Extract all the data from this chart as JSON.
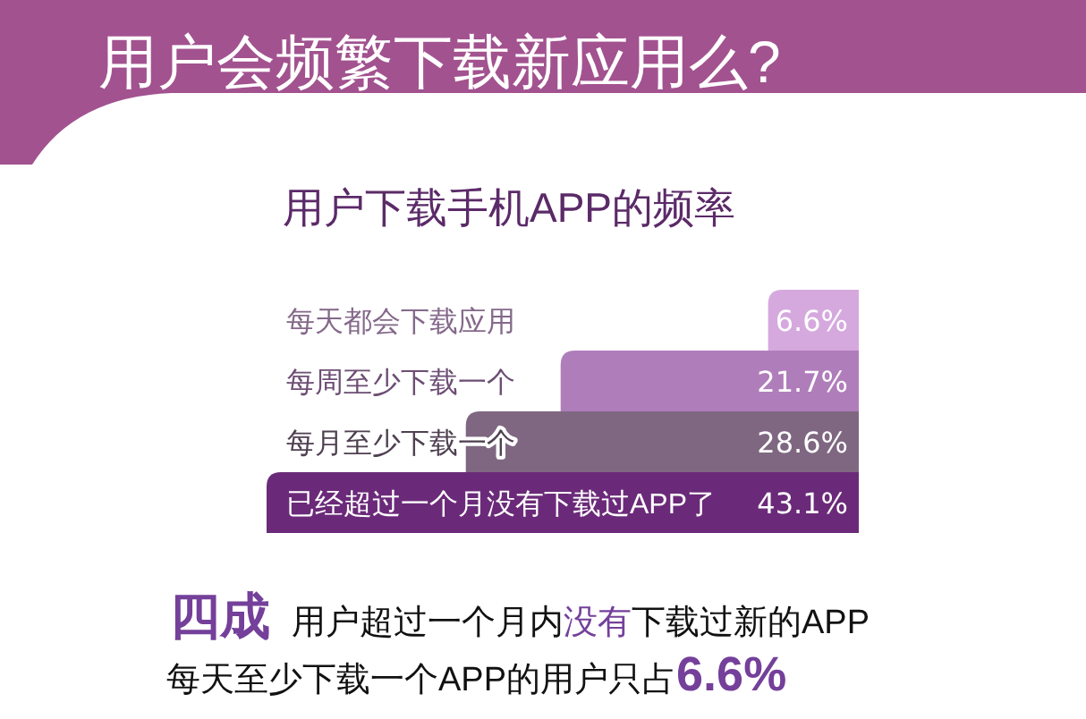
{
  "chart_data": {
    "type": "bar",
    "orientation": "horizontal",
    "title": "用户会频繁下载新应用么?",
    "subtitle": "用户下载手机APP的频率",
    "categories": [
      "每天都会下载应用",
      "每周至少下载一个",
      "每月至少下载一个",
      "已经超过一个月没有下载过APP了"
    ],
    "values": [
      6.6,
      21.7,
      28.6,
      43.1
    ],
    "colors": [
      "#d5a9de",
      "#b07dbb",
      "#7f6782",
      "#6b2a79"
    ],
    "value_labels": [
      "6.6%",
      "21.7%",
      "28.6%",
      "43.1%"
    ],
    "annotations": [
      "四成",
      "用户超过一个月内",
      "没有",
      "下载过新的APP",
      "每天至少下载一个APP的用户只占",
      "6.6%"
    ]
  }
}
